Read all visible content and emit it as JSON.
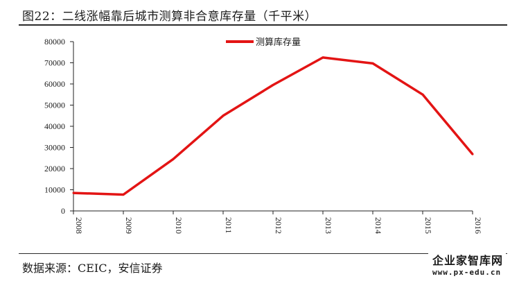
{
  "title": "图22：二线涨幅靠后城市测算非合意库存量（千平米）",
  "source": "数据来源：CEIC，安信证券",
  "watermark": {
    "name": "企业家智库网",
    "url": "www.px-edu.cn"
  },
  "chart_data": {
    "type": "line",
    "categories": [
      "2008",
      "2009",
      "2010",
      "2011",
      "2012",
      "2013",
      "2014",
      "2015",
      "2016"
    ],
    "series": [
      {
        "name": "测算库存量",
        "color": "#e31414",
        "values": [
          8500,
          7700,
          24500,
          45000,
          59500,
          72500,
          69700,
          55000,
          26800
        ]
      }
    ],
    "yticks": [
      0,
      10000,
      20000,
      30000,
      40000,
      50000,
      60000,
      70000,
      80000
    ],
    "ylim": [
      0,
      80000
    ],
    "legend": "top-center",
    "grid": false
  }
}
